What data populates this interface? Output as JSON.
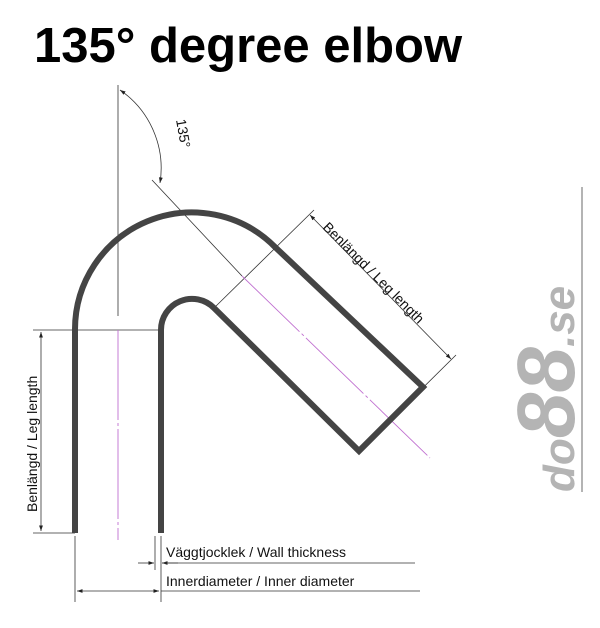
{
  "title": "135° degree elbow",
  "angle_label": "135°",
  "leg_length_label": "Benlängd / Leg length",
  "wall_thickness_label": "Väggtjocklek / Wall thickness",
  "inner_diameter_label": "Innerdiameter / Inner diameter",
  "logo": {
    "text": "do88.se",
    "color": "#b4b4b4"
  },
  "colors": {
    "pipe": "#444444",
    "centerline": "#c070d0",
    "dimension": "#333333"
  }
}
